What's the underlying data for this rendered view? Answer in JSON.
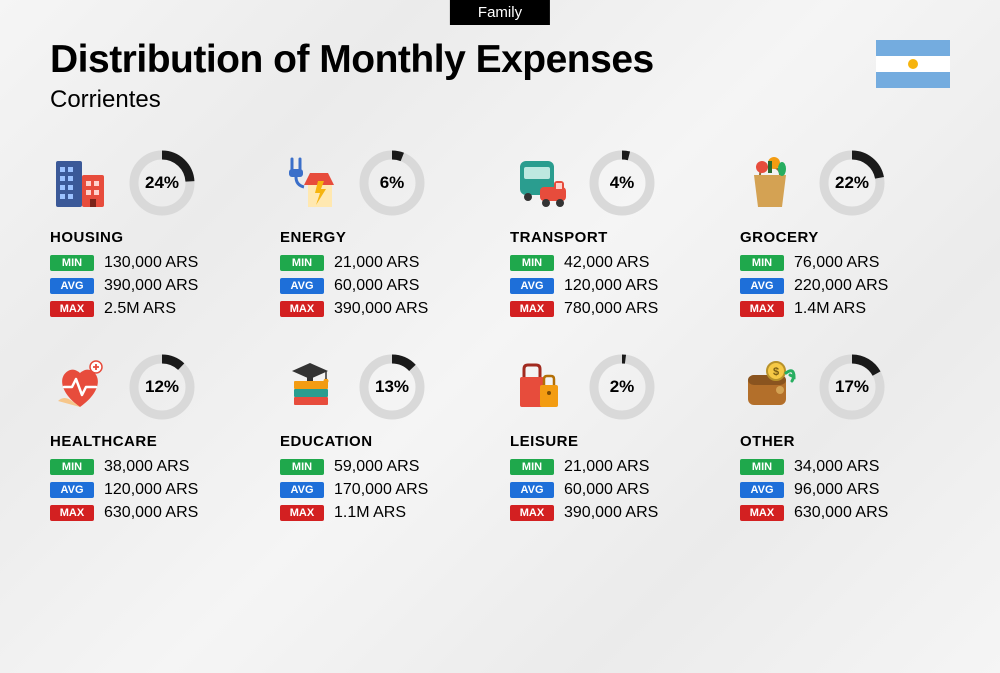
{
  "badge": "Family",
  "title": "Distribution of Monthly Expenses",
  "subtitle": "Corrientes",
  "flag_colors": {
    "blue": "#74acdf",
    "white": "#ffffff",
    "sun": "#f6b40e"
  },
  "donut": {
    "radius": 28,
    "stroke_width": 9,
    "track_color": "#d9d9d9",
    "fill_color": "#1a1a1a",
    "label_fontsize": 17
  },
  "stat_labels": {
    "min": {
      "text": "MIN",
      "bg": "#1fa84c"
    },
    "avg": {
      "text": "AVG",
      "bg": "#1e6fd9"
    },
    "max": {
      "text": "MAX",
      "bg": "#d32021"
    }
  },
  "categories": [
    {
      "name": "HOUSING",
      "percent": 24,
      "min": "130,000 ARS",
      "avg": "390,000 ARS",
      "max": "2.5M ARS",
      "icon": "buildings"
    },
    {
      "name": "ENERGY",
      "percent": 6,
      "min": "21,000 ARS",
      "avg": "60,000 ARS",
      "max": "390,000 ARS",
      "icon": "energy"
    },
    {
      "name": "TRANSPORT",
      "percent": 4,
      "min": "42,000 ARS",
      "avg": "120,000 ARS",
      "max": "780,000 ARS",
      "icon": "transport"
    },
    {
      "name": "GROCERY",
      "percent": 22,
      "min": "76,000 ARS",
      "avg": "220,000 ARS",
      "max": "1.4M ARS",
      "icon": "grocery"
    },
    {
      "name": "HEALTHCARE",
      "percent": 12,
      "min": "38,000 ARS",
      "avg": "120,000 ARS",
      "max": "630,000 ARS",
      "icon": "healthcare"
    },
    {
      "name": "EDUCATION",
      "percent": 13,
      "min": "59,000 ARS",
      "avg": "170,000 ARS",
      "max": "1.1M ARS",
      "icon": "education"
    },
    {
      "name": "LEISURE",
      "percent": 2,
      "min": "21,000 ARS",
      "avg": "60,000 ARS",
      "max": "390,000 ARS",
      "icon": "leisure"
    },
    {
      "name": "OTHER",
      "percent": 17,
      "min": "34,000 ARS",
      "avg": "96,000 ARS",
      "max": "630,000 ARS",
      "icon": "other"
    }
  ]
}
